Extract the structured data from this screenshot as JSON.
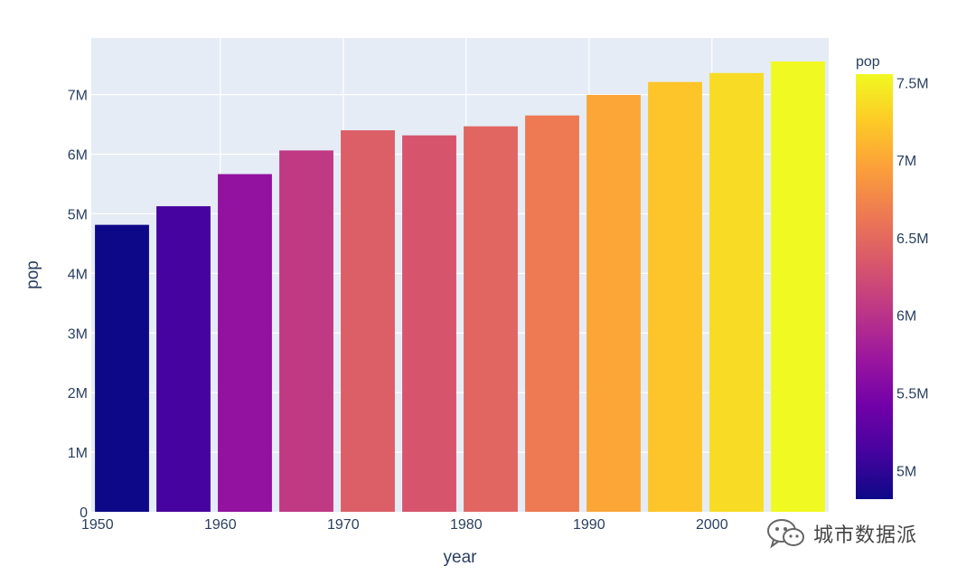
{
  "chart_data": {
    "type": "bar",
    "x": [
      1952,
      1957,
      1962,
      1967,
      1972,
      1977,
      1982,
      1987,
      1992,
      1997,
      2002,
      2007
    ],
    "values": [
      4815000,
      5127000,
      5666000,
      6063000,
      6401000,
      6316000,
      6468000,
      6650000,
      6995000,
      7212000,
      7362000,
      7555000
    ],
    "x_tick_values": [
      1950,
      1960,
      1970,
      1980,
      1990,
      2000
    ],
    "x_tick_labels": [
      "1950",
      "1960",
      "1970",
      "1980",
      "1990",
      "2000"
    ],
    "y_tick_values": [
      0,
      1000000,
      2000000,
      3000000,
      4000000,
      5000000,
      6000000,
      7000000
    ],
    "y_tick_labels": [
      "0",
      "1M",
      "2M",
      "3M",
      "4M",
      "5M",
      "6M",
      "7M"
    ],
    "xlabel": "year",
    "ylabel": "pop",
    "xlim": [
      1949.5,
      2009.5
    ],
    "ylim": [
      0,
      7950000
    ],
    "grid": true,
    "colorbar": {
      "title": "pop",
      "range": [
        4815000,
        7555000
      ],
      "tick_values": [
        5000000,
        5500000,
        6000000,
        6500000,
        7000000,
        7500000
      ],
      "tick_labels": [
        "5M",
        "5.5M",
        "6M",
        "6.5M",
        "7M",
        "7.5M"
      ],
      "colorscale": [
        "#0d0887",
        "#46039f",
        "#7201a8",
        "#9c179e",
        "#bd3786",
        "#d8576b",
        "#ed7953",
        "#fb9f3a",
        "#fdca26",
        "#f0f921"
      ]
    },
    "plot_background": "#e5ecf6"
  },
  "watermark": {
    "icon": "wechat-icon",
    "text": "城市数据派"
  }
}
